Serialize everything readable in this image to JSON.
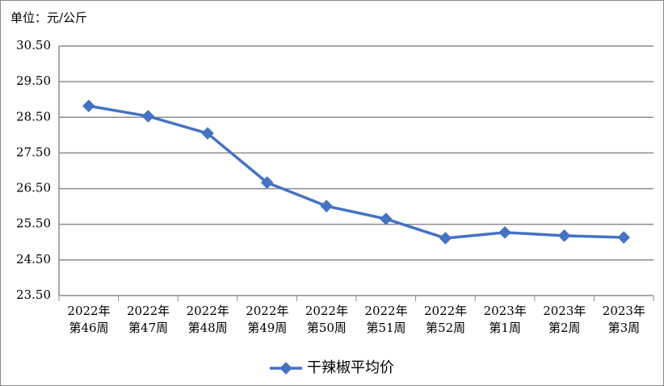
{
  "chart_data": {
    "type": "line",
    "unit_label": "单位：元/公斤",
    "categories": [
      "2022年\n第46周",
      "2022年\n第47周",
      "2022年\n第48周",
      "2022年\n第49周",
      "2022年\n第50周",
      "2022年\n第51周",
      "2022年\n第52周",
      "2023年\n第1周",
      "2023年\n第2周",
      "2023年\n第3周"
    ],
    "series": [
      {
        "name": "干辣椒平均价",
        "color": "#4472c4",
        "values": [
          28.82,
          28.53,
          28.05,
          26.67,
          26.01,
          25.65,
          25.11,
          25.27,
          25.18,
          25.13
        ]
      }
    ],
    "ylim": [
      23.5,
      30.5
    ],
    "yticks": [
      {
        "value": 23.5,
        "label": "23.50"
      },
      {
        "value": 24.5,
        "label": "24.50"
      },
      {
        "value": 25.5,
        "label": "25.50"
      },
      {
        "value": 26.5,
        "label": "26.50"
      },
      {
        "value": 27.5,
        "label": "27.50"
      },
      {
        "value": 28.5,
        "label": "28.50"
      },
      {
        "value": 29.5,
        "label": "29.50"
      },
      {
        "value": 30.5,
        "label": "30.50"
      }
    ],
    "grid": true,
    "legend": "bottom"
  }
}
